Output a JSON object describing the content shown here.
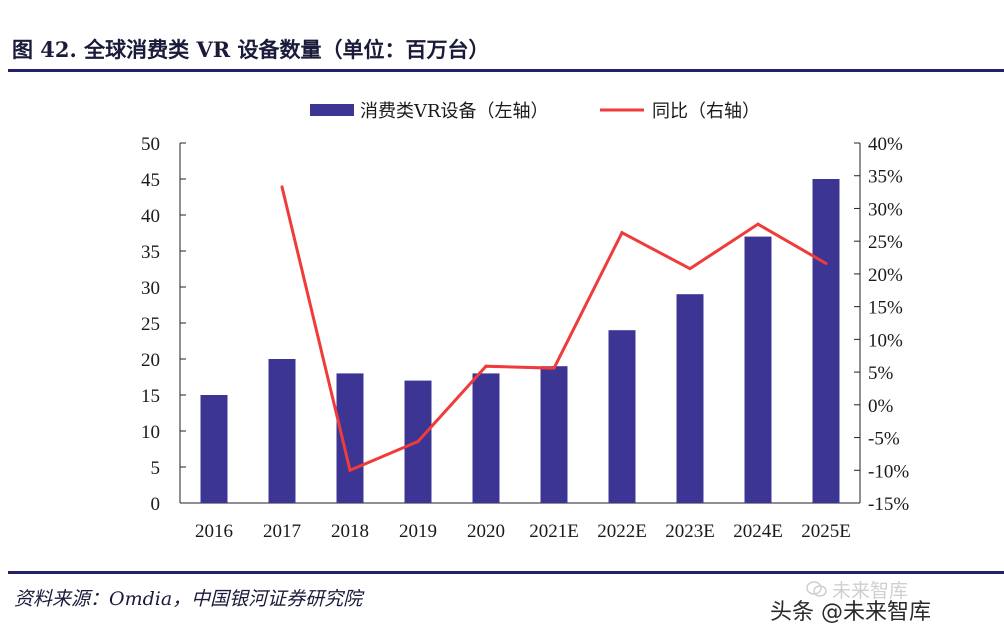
{
  "header": {
    "title": "图 42. 全球消费类 VR 设备数量（单位：百万台）"
  },
  "footer": {
    "source": "资料来源：Omdia，中国银河证券研究院",
    "watermark_top": "未来智库",
    "watermark_bottom": "头条 @未来智库",
    "watermark_icon": "wechat-icon"
  },
  "colors": {
    "bar": "#3c3593",
    "line": "#ef3b3b",
    "rule": "#20206b",
    "axis": "#222222"
  },
  "chart_data": {
    "type": "bar+line",
    "categories": [
      "2016",
      "2017",
      "2018",
      "2019",
      "2020",
      "2021E",
      "2022E",
      "2023E",
      "2024E",
      "2025E"
    ],
    "series": [
      {
        "name": "消费类VR设备（左轴）",
        "type": "bar",
        "axis": "left",
        "values": [
          15,
          20,
          18,
          17,
          18,
          19,
          24,
          29,
          37,
          45
        ]
      },
      {
        "name": "同比（右轴）",
        "type": "line",
        "axis": "right",
        "values": [
          null,
          33.3,
          -10.0,
          -5.6,
          5.9,
          5.6,
          26.3,
          20.8,
          27.6,
          21.6
        ]
      }
    ],
    "left_axis": {
      "min": 0,
      "max": 50,
      "step": 5,
      "tick_labels": [
        "0",
        "5",
        "10",
        "15",
        "20",
        "25",
        "30",
        "35",
        "40",
        "45",
        "50"
      ]
    },
    "right_axis": {
      "min": -15,
      "max": 40,
      "step": 5,
      "tick_labels": [
        "-15%",
        "-10%",
        "-5%",
        "0%",
        "5%",
        "10%",
        "15%",
        "20%",
        "25%",
        "30%",
        "35%",
        "40%"
      ]
    },
    "legend": {
      "position": "top-center",
      "entries": [
        "消费类VR设备（左轴）",
        "同比（右轴）"
      ]
    },
    "grid": false
  }
}
